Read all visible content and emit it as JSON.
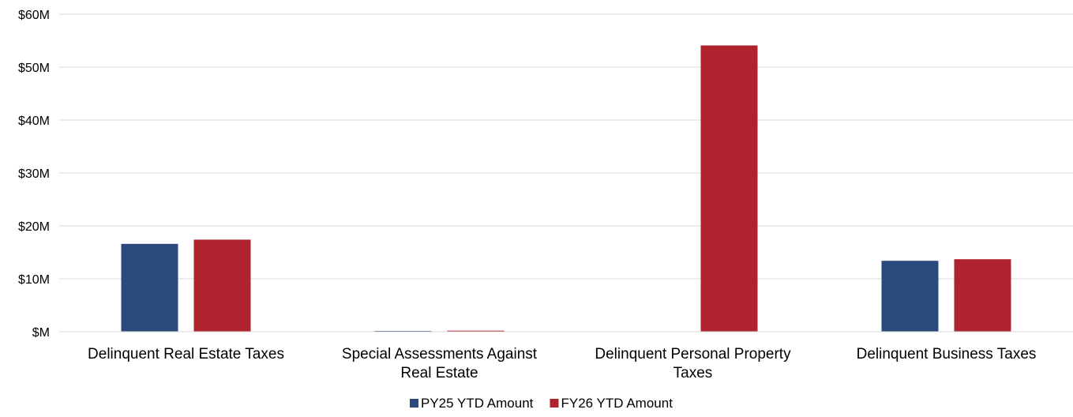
{
  "chart_data": {
    "type": "bar",
    "title": "",
    "xlabel": "",
    "ylabel": "",
    "categories": [
      [
        "Delinquent Real Estate Taxes"
      ],
      [
        "Special Assessments Against",
        "Real Estate"
      ],
      [
        "Delinquent Personal Property",
        "Taxes"
      ],
      [
        "Delinquent Business Taxes"
      ]
    ],
    "series": [
      {
        "name": "PY25 YTD Amount",
        "color": "#2b4a7c",
        "values": [
          16.6,
          0.05,
          0,
          13.4
        ]
      },
      {
        "name": "FY26 YTD Amount",
        "color": "#ae232d",
        "values": [
          17.4,
          0.2,
          54.1,
          13.7
        ]
      }
    ],
    "ylim": [
      0,
      60
    ],
    "yticks": [
      0,
      10,
      20,
      30,
      40,
      50,
      60
    ],
    "ytick_labels": [
      "$M",
      "$10M",
      "$20M",
      "$30M",
      "$40M",
      "$50M",
      "$60M"
    ],
    "grid": true,
    "legend_position": "bottom-center"
  }
}
